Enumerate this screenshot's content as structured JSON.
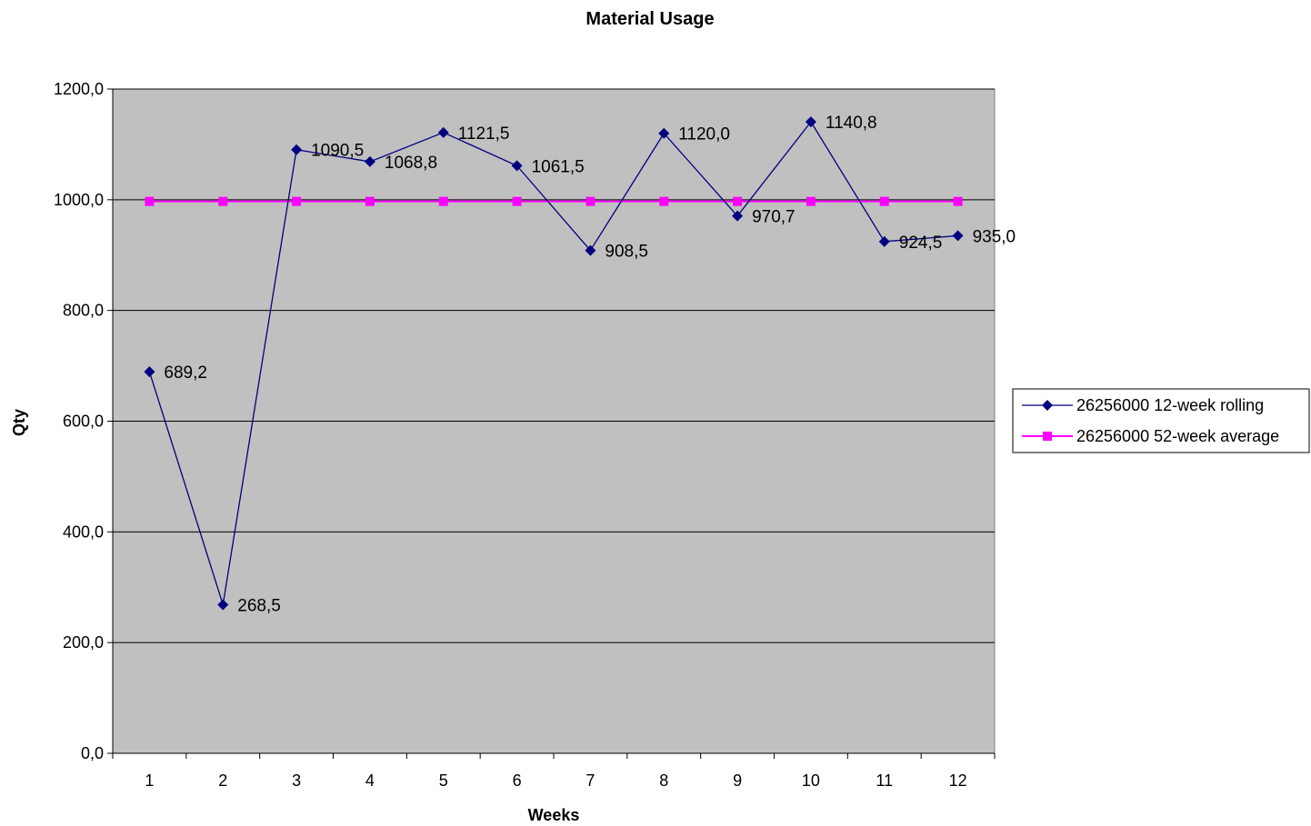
{
  "chart_data": {
    "type": "line",
    "title": "Material Usage",
    "xlabel": "Weeks",
    "ylabel": "Qty",
    "categories": [
      "1",
      "2",
      "3",
      "4",
      "5",
      "6",
      "7",
      "8",
      "9",
      "10",
      "11",
      "12"
    ],
    "ylim": [
      0,
      1200
    ],
    "yticks": [
      0,
      200,
      400,
      600,
      800,
      1000,
      1200
    ],
    "ytick_labels": [
      "0,0",
      "200,0",
      "400,0",
      "600,0",
      "800,0",
      "1000,0",
      "1200,0"
    ],
    "grid": true,
    "legend": "right",
    "plot_background": "#c0c0c0",
    "series": [
      {
        "name": "26256000 12-week rolling",
        "values": [
          689.2,
          268.5,
          1090.5,
          1068.8,
          1121.5,
          1061.5,
          908.5,
          1120.0,
          970.7,
          1140.8,
          924.5,
          935.0
        ],
        "data_labels": [
          "689,2",
          "268,5",
          "1090,5",
          "1068,8",
          "1121,5",
          "1061,5",
          "908,5",
          "1120,0",
          "970,7",
          "1140,8",
          "924,5",
          "935,0"
        ],
        "color": "#000080",
        "marker": "diamond"
      },
      {
        "name": "26256000 52-week average",
        "values": [
          997,
          997,
          997,
          997,
          997,
          997,
          997,
          997,
          997,
          997,
          997,
          997
        ],
        "color": "#ff00ff",
        "marker": "square"
      }
    ]
  }
}
